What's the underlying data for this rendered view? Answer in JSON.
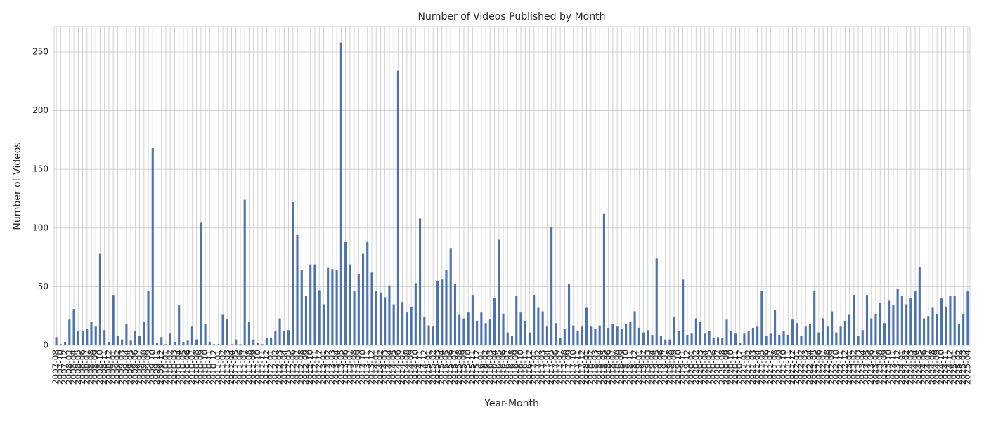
{
  "chart_data": {
    "type": "bar",
    "title": "Number of Videos Published by Month",
    "xlabel": "Year-Month",
    "ylabel": "Number of Videos",
    "categories": [
      "2007-08",
      "2007-10",
      "2007-12",
      "2008-02",
      "2008-04",
      "2008-05",
      "2008-06",
      "2008-07",
      "2008-08",
      "2008-09",
      "2008-10",
      "2008-11",
      "2008-12",
      "2009-01",
      "2009-02",
      "2009-03",
      "2009-04",
      "2009-05",
      "2009-06",
      "2009-07",
      "2009-08",
      "2009-09",
      "2009-10",
      "2009-11",
      "2009-12",
      "2010-01",
      "2010-02",
      "2010-03",
      "2010-04",
      "2010-05",
      "2010-06",
      "2010-07",
      "2010-08",
      "2010-09",
      "2010-10",
      "2010-11",
      "2010-12",
      "2011-01",
      "2011-02",
      "2011-03",
      "2011-04",
      "2011-05",
      "2011-06",
      "2011-07",
      "2011-08",
      "2011-09",
      "2011-10",
      "2011-11",
      "2011-12",
      "2012-01",
      "2012-02",
      "2012-03",
      "2012-04",
      "2012-05",
      "2012-06",
      "2012-07",
      "2012-08",
      "2012-09",
      "2012-10",
      "2012-11",
      "2012-12",
      "2013-01",
      "2013-02",
      "2013-03",
      "2013-04",
      "2013-05",
      "2013-06",
      "2013-07",
      "2013-08",
      "2013-09",
      "2013-10",
      "2013-11",
      "2013-12",
      "2014-01",
      "2014-02",
      "2014-03",
      "2014-04",
      "2014-05",
      "2014-06",
      "2014-07",
      "2014-08",
      "2014-09",
      "2014-10",
      "2014-11",
      "2014-12",
      "2015-01",
      "2015-02",
      "2015-03",
      "2015-04",
      "2015-05",
      "2015-06",
      "2015-07",
      "2015-08",
      "2015-09",
      "2015-10",
      "2015-11",
      "2015-12",
      "2016-01",
      "2016-02",
      "2016-03",
      "2016-04",
      "2016-05",
      "2016-06",
      "2016-07",
      "2016-08",
      "2016-09",
      "2016-10",
      "2016-11",
      "2016-12",
      "2017-01",
      "2017-02",
      "2017-03",
      "2017-04",
      "2017-05",
      "2017-06",
      "2017-07",
      "2017-08",
      "2017-09",
      "2017-10",
      "2017-11",
      "2017-12",
      "2018-01",
      "2018-02",
      "2018-03",
      "2018-04",
      "2018-05",
      "2018-06",
      "2018-07",
      "2018-08",
      "2018-09",
      "2018-10",
      "2018-11",
      "2018-12",
      "2019-01",
      "2019-02",
      "2019-03",
      "2019-04",
      "2019-05",
      "2019-06",
      "2019-07",
      "2019-08",
      "2019-09",
      "2019-10",
      "2019-11",
      "2019-12",
      "2020-01",
      "2020-02",
      "2020-03",
      "2020-04",
      "2020-05",
      "2020-06",
      "2020-07",
      "2020-08",
      "2020-09",
      "2020-10",
      "2020-11",
      "2020-12",
      "2021-01",
      "2021-02",
      "2021-03",
      "2021-04",
      "2021-05",
      "2021-06",
      "2021-07",
      "2021-08",
      "2021-09",
      "2021-10",
      "2021-11",
      "2021-12",
      "2022-01",
      "2022-02",
      "2022-03",
      "2022-04",
      "2022-05",
      "2022-06",
      "2022-07",
      "2022-08",
      "2022-09",
      "2022-10",
      "2022-11",
      "2022-12",
      "2023-01",
      "2023-02",
      "2023-03",
      "2023-04",
      "2023-05",
      "2023-06",
      "2023-07",
      "2023-08",
      "2023-09",
      "2023-10",
      "2023-11",
      "2023-12",
      "2024-01",
      "2024-02",
      "2024-03",
      "2024-04",
      "2024-05",
      "2024-06",
      "2024-07",
      "2024-08",
      "2024-09",
      "2024-10",
      "2024-11",
      "2024-12",
      "2025-01",
      "2025-02",
      "2025-03",
      "2025-04"
    ],
    "values": [
      7,
      1,
      3,
      22,
      31,
      12,
      12,
      14,
      20,
      16,
      78,
      13,
      3,
      43,
      8,
      5,
      18,
      4,
      12,
      8,
      20,
      46,
      168,
      2,
      7,
      1,
      10,
      3,
      34,
      3,
      4,
      16,
      5,
      105,
      18,
      3,
      1,
      1,
      26,
      22,
      1,
      5,
      1,
      124,
      20,
      5,
      2,
      1,
      6,
      6,
      12,
      23,
      12,
      13,
      122,
      94,
      64,
      42,
      69,
      69,
      47,
      35,
      66,
      65,
      64,
      258,
      88,
      69,
      46,
      61,
      78,
      88,
      62,
      46,
      45,
      41,
      51,
      35,
      234,
      37,
      28,
      33,
      53,
      108,
      24,
      17,
      16,
      55,
      56,
      64,
      83,
      52,
      26,
      23,
      28,
      43,
      21,
      28,
      19,
      22,
      40,
      90,
      27,
      11,
      8,
      42,
      28,
      21,
      11,
      43,
      32,
      29,
      16,
      101,
      19,
      6,
      14,
      52,
      17,
      12,
      16,
      32,
      16,
      14,
      17,
      112,
      15,
      18,
      16,
      14,
      18,
      20,
      29,
      15,
      11,
      13,
      9,
      74,
      8,
      5,
      5,
      24,
      12,
      56,
      9,
      10,
      23,
      20,
      10,
      12,
      6,
      7,
      6,
      22,
      12,
      10,
      2,
      10,
      12,
      15,
      16,
      46,
      8,
      10,
      30,
      9,
      12,
      9,
      22,
      19,
      8,
      16,
      18,
      46,
      11,
      23,
      16,
      29,
      11,
      16,
      21,
      26,
      43,
      8,
      13,
      43,
      23,
      27,
      36,
      19,
      38,
      34,
      48,
      42,
      35,
      40,
      46,
      67,
      23,
      25,
      32,
      27,
      40,
      33,
      42,
      42,
      18,
      27,
      46
    ],
    "color": "#4c72b0",
    "ylim": [
      0,
      271.5
    ],
    "yticks": [
      0,
      50,
      100,
      150,
      200,
      250
    ],
    "grid": true
  }
}
